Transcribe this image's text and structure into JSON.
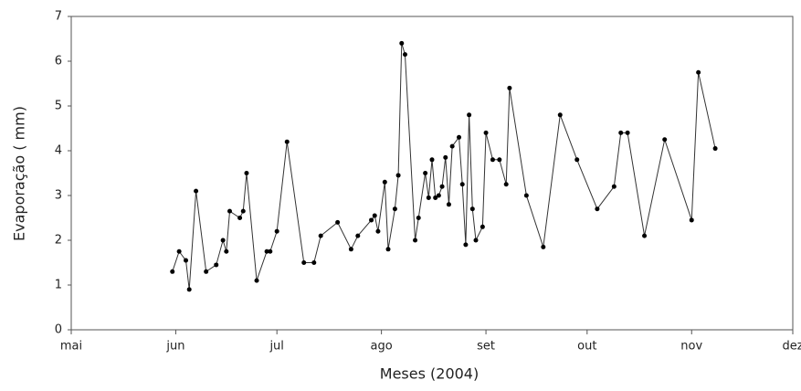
{
  "chart_data": {
    "type": "line",
    "x_label": "Meses (2004)",
    "y_label": "Evaporação ( mm)",
    "x": [
      30,
      32,
      34,
      35,
      37,
      40,
      43,
      45,
      46,
      47,
      50,
      51,
      52,
      55,
      58,
      59,
      61,
      64,
      69,
      72,
      74,
      79,
      83,
      85,
      89,
      90,
      91,
      93,
      94,
      96,
      97,
      98,
      99,
      102,
      103,
      105,
      106,
      107,
      108,
      109,
      110,
      111,
      112,
      113,
      115,
      116,
      117,
      118,
      119,
      120,
      122,
      123,
      125,
      127,
      129,
      130,
      135,
      140,
      145,
      150,
      156,
      161,
      163,
      165,
      170,
      176,
      184,
      186,
      191
    ],
    "series": [
      {
        "name": "Evaporação",
        "color": "#333333",
        "values": [
          1.3,
          1.75,
          1.55,
          0.9,
          3.1,
          1.3,
          1.45,
          2.0,
          1.75,
          2.65,
          2.5,
          2.65,
          3.5,
          1.1,
          1.75,
          1.75,
          2.2,
          4.2,
          1.5,
          1.5,
          2.1,
          2.4,
          1.8,
          2.1,
          2.45,
          2.55,
          2.2,
          3.3,
          1.8,
          2.7,
          3.45,
          6.4,
          6.15,
          2.0,
          2.5,
          3.5,
          2.95,
          3.8,
          2.95,
          3.0,
          3.2,
          3.85,
          2.8,
          4.1,
          4.3,
          3.25,
          1.9,
          4.8,
          2.7,
          2.0,
          2.3,
          4.4,
          3.8,
          3.8,
          3.25,
          5.4,
          3.0,
          1.85,
          4.8,
          3.8,
          2.7,
          3.2,
          4.4,
          4.4,
          2.1,
          4.25,
          2.45,
          5.75,
          4.05
        ]
      }
    ],
    "xlim": [
      0,
      214
    ],
    "xticks": [
      {
        "value": 0,
        "label": "mai"
      },
      {
        "value": 31,
        "label": "jun"
      },
      {
        "value": 61,
        "label": "jul"
      },
      {
        "value": 92,
        "label": "ago"
      },
      {
        "value": 123,
        "label": "set"
      },
      {
        "value": 153,
        "label": "out"
      },
      {
        "value": 184,
        "label": "nov"
      },
      {
        "value": 214,
        "label": "dez"
      }
    ],
    "ylim": [
      0,
      7
    ],
    "yticks": [
      0,
      1,
      2,
      3,
      4,
      5,
      6,
      7
    ],
    "grid": false
  }
}
